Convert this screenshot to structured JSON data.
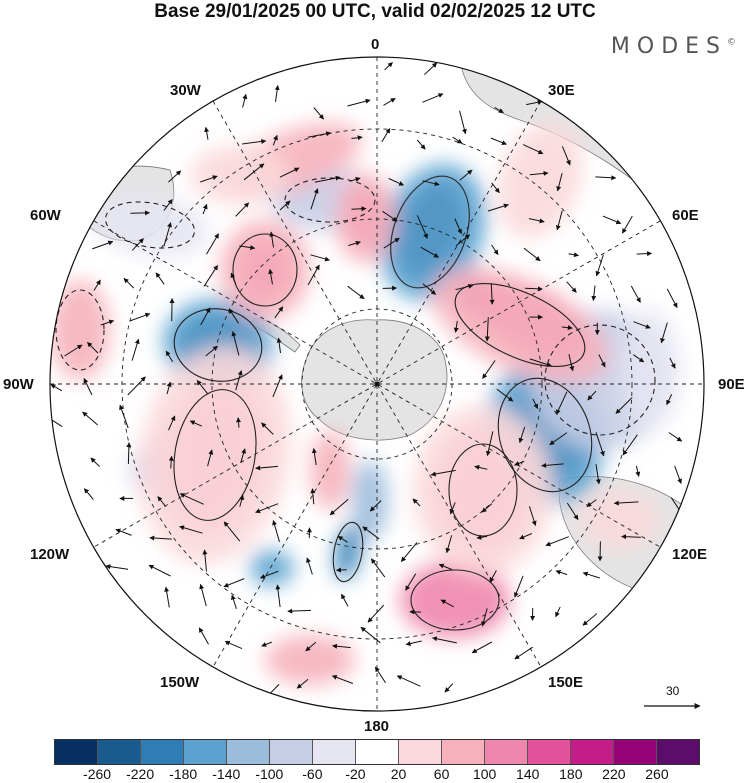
{
  "header": {
    "title": "Base 29/01/2025 00 UTC, valid 02/02/2025 12 UTC",
    "brand": "MODES",
    "brand_mark": "©"
  },
  "map": {
    "projection": "south-polar-stereographic",
    "longitude_labels": {
      "lon_0": "0",
      "lon_30e": "30E",
      "lon_60e": "60E",
      "lon_90e": "90E",
      "lon_120e": "120E",
      "lon_150e": "150E",
      "lon_180": "180",
      "lon_150w": "150W",
      "lon_120w": "120W",
      "lon_90w": "90W",
      "lon_60w": "60W",
      "lon_30w": "30W"
    },
    "land_color": "#e6e6e6",
    "ocean_color": "#ffffff"
  },
  "wind_scale": {
    "label": "30"
  },
  "colorbar": {
    "colors": [
      "#053061",
      "#1b5c8e",
      "#2f7db5",
      "#5aa1cf",
      "#9cbcdc",
      "#c6cde6",
      "#e6e6f2",
      "#ffffff",
      "#fbd9dc",
      "#f6b1bd",
      "#ef86ad",
      "#e2529d",
      "#c41d8a",
      "#950477",
      "#5c0c6b"
    ],
    "ticks": [
      "-260",
      "-220",
      "-180",
      "-140",
      "-100",
      "-60",
      "-20",
      "20",
      "60",
      "100",
      "140",
      "180",
      "220",
      "260"
    ]
  }
}
